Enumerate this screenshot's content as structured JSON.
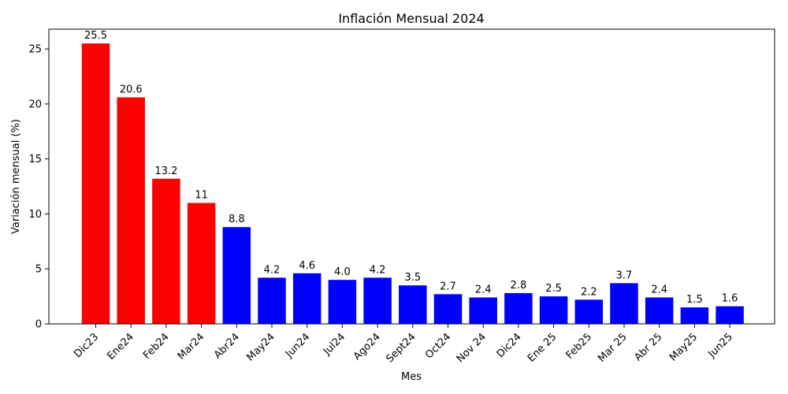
{
  "chart_data": {
    "type": "bar",
    "title": "Inflación Mensual 2024",
    "xlabel": "Mes",
    "ylabel": "Variación mensual (%)",
    "ylim": [
      0,
      26.8
    ],
    "yticks": [
      0,
      5,
      10,
      15,
      20,
      25
    ],
    "grid": false,
    "categories": [
      "Dic23",
      "Ene24",
      "Feb24",
      "Mar24",
      "Abr24",
      "May24",
      "Jun24",
      "Jul24",
      "Ago24",
      "Sept24",
      "Oct24",
      "Nov 24",
      "Dic24",
      "Ene 25",
      "Feb25",
      "Mar 25",
      "Abr 25",
      "May25",
      "Jun25"
    ],
    "values": [
      25.5,
      20.6,
      13.2,
      11,
      8.8,
      4.2,
      4.6,
      4.0,
      4.2,
      3.5,
      2.7,
      2.4,
      2.8,
      2.5,
      2.2,
      3.7,
      2.4,
      1.5,
      1.6
    ],
    "value_labels": [
      "25.5",
      "20.6",
      "13.2",
      "11",
      "8.8",
      "4.2",
      "4.6",
      "4.0",
      "4.2",
      "3.5",
      "2.7",
      "2.4",
      "2.8",
      "2.5",
      "2.2",
      "3.7",
      "2.4",
      "1.5",
      "1.6"
    ],
    "bar_colors": [
      "#ff0000",
      "#ff0000",
      "#ff0000",
      "#ff0000",
      "#0000ff",
      "#0000ff",
      "#0000ff",
      "#0000ff",
      "#0000ff",
      "#0000ff",
      "#0000ff",
      "#0000ff",
      "#0000ff",
      "#0000ff",
      "#0000ff",
      "#0000ff",
      "#0000ff",
      "#0000ff",
      "#0000ff"
    ]
  }
}
